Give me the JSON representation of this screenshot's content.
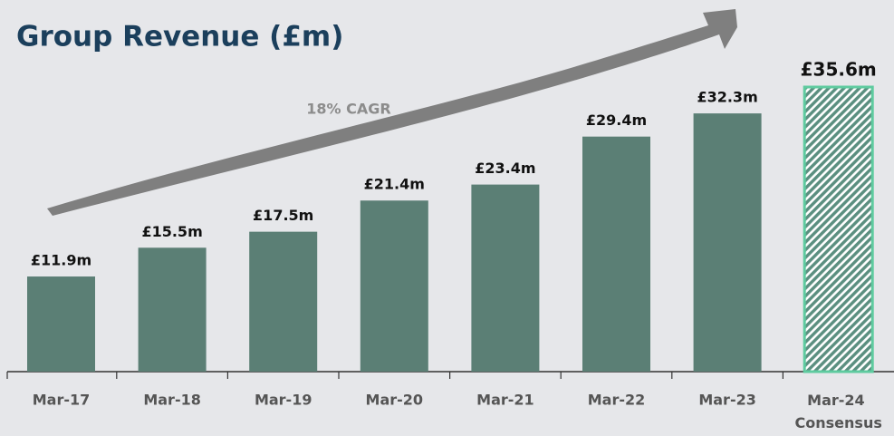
{
  "chart_data": {
    "type": "bar",
    "title": "Group Revenue (£m)",
    "annotation": "18% CAGR",
    "categories": [
      "Mar-17",
      "Mar-18",
      "Mar-19",
      "Mar-20",
      "Mar-21",
      "Mar-22",
      "Mar-23",
      "Mar-24 Consensus"
    ],
    "values": [
      11.9,
      15.5,
      17.5,
      21.4,
      23.4,
      29.4,
      32.3,
      35.6
    ],
    "value_labels": [
      "£11.9m",
      "£15.5m",
      "£17.5m",
      "£21.4m",
      "£23.4m",
      "£29.4m",
      "£32.3m",
      "£35.6m"
    ],
    "color": "#5b7f75",
    "highlight_color": "#5ecb9f",
    "hatched": [
      false,
      false,
      false,
      false,
      false,
      false,
      false,
      true
    ]
  }
}
